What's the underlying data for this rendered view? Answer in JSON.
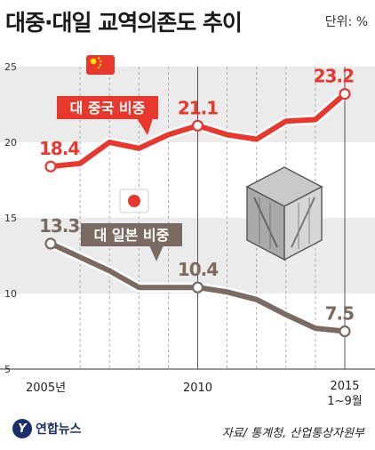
{
  "header": {
    "title": "대중·대일 교역의존도 추이",
    "unit": "단위: %"
  },
  "footer": {
    "logo_mark": "Y",
    "logo_text": "연합뉴스",
    "source": "자료/ 통계청, 산업통상자원부"
  },
  "colors": {
    "china": "#e8372c",
    "japan": "#7a6a62",
    "band": "#ebebeb"
  },
  "icons": [
    "china-flag-icon",
    "japan-flag-icon",
    "container-crate-icon"
  ],
  "chart_data": {
    "type": "line",
    "x": [
      2005,
      2006,
      2007,
      2008,
      2009,
      2010,
      2011,
      2012,
      2013,
      2014,
      2015
    ],
    "x_tick_labels": [
      "2005년",
      "2010",
      "2015\n1~9월"
    ],
    "ylim": [
      5,
      25
    ],
    "y_ticks": [
      5,
      10,
      15,
      20,
      25
    ],
    "grid": "alternating bands",
    "series": [
      {
        "name": "대 중국 비중",
        "color": "#e8372c",
        "values": [
          18.4,
          18.6,
          20.0,
          19.6,
          20.5,
          21.1,
          20.5,
          20.2,
          21.4,
          21.5,
          23.2
        ]
      },
      {
        "name": "대 일본 비중",
        "color": "#7a6a62",
        "values": [
          13.3,
          12.4,
          11.5,
          10.4,
          10.4,
          10.4,
          10.1,
          9.6,
          8.6,
          7.7,
          7.5
        ]
      }
    ],
    "point_labels": [
      {
        "series": 0,
        "index": 0,
        "text": "18.4"
      },
      {
        "series": 0,
        "index": 5,
        "text": "21.1"
      },
      {
        "series": 0,
        "index": 10,
        "text": "23.2"
      },
      {
        "series": 1,
        "index": 0,
        "text": "13.3"
      },
      {
        "series": 1,
        "index": 5,
        "text": "10.4"
      },
      {
        "series": 1,
        "index": 10,
        "text": "7.5"
      }
    ]
  }
}
